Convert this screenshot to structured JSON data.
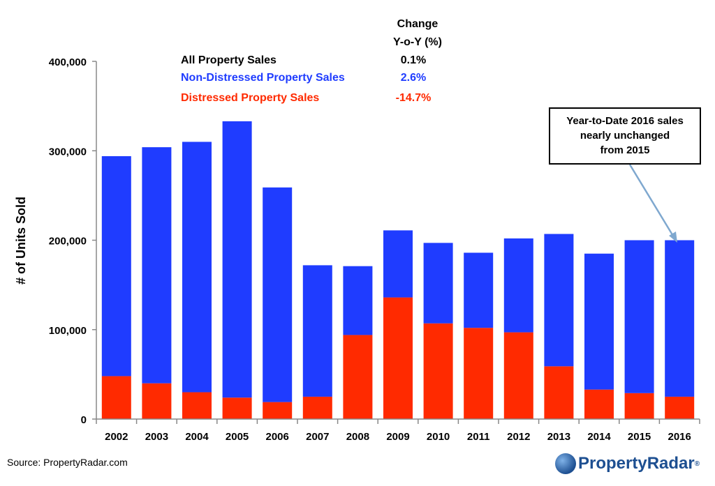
{
  "chart_data": {
    "type": "bar",
    "stacked": true,
    "categories": [
      "2002",
      "2003",
      "2004",
      "2005",
      "2006",
      "2007",
      "2008",
      "2009",
      "2010",
      "2011",
      "2012",
      "2013",
      "2014",
      "2015",
      "2016"
    ],
    "series": [
      {
        "name": "Distressed Property Sales",
        "color": "#ff2a00",
        "values": [
          48000,
          40000,
          30000,
          24000,
          19000,
          25000,
          94000,
          136000,
          107000,
          102000,
          97000,
          59000,
          33000,
          29000,
          25000
        ]
      },
      {
        "name": "Non-Distressed Property Sales",
        "color": "#1f3cff",
        "values": [
          246000,
          264000,
          280000,
          309000,
          240000,
          147000,
          77000,
          75000,
          90000,
          84000,
          105000,
          148000,
          152000,
          171000,
          175000
        ]
      }
    ],
    "ylabel": "# of Units Sold",
    "ylim": [
      0,
      400000
    ],
    "yticks": [
      0,
      100000,
      200000,
      300000,
      400000
    ],
    "ytick_labels": [
      "0",
      "100,000",
      "200,000",
      "300,000",
      "400,000"
    ],
    "annotation": "Year-to-Date 2016 sales nearly unchanged from 2015"
  },
  "legend": {
    "change_header_line1": "Change",
    "change_header_line2": "Y-o-Y (%)",
    "rows": [
      {
        "label": "All Property Sales",
        "change": "0.1%",
        "color": "#000000"
      },
      {
        "label": "Non-Distressed Property Sales",
        "change": "2.6%",
        "color": "#1f3cff"
      },
      {
        "label": "Distressed Property Sales",
        "change": "-14.7%",
        "color": "#ff2a00"
      }
    ]
  },
  "callout": {
    "line1": "Year-to-Date 2016 sales",
    "line2": "nearly unchanged",
    "line3": "from 2015"
  },
  "source": "Source: PropertyRadar.com",
  "logo": {
    "text": "PropertyRadar",
    "mark": "®"
  }
}
